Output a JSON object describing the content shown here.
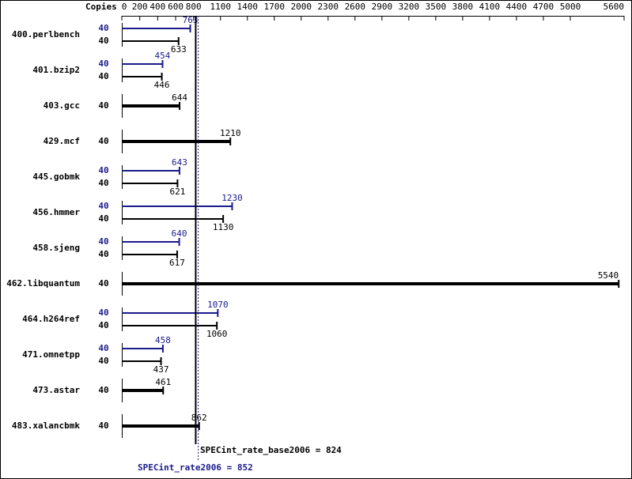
{
  "chart_data": {
    "type": "bar",
    "copies_label": "Copies",
    "categories": [
      "400.perlbench",
      "401.bzip2",
      "403.gcc",
      "429.mcf",
      "445.gobmk",
      "456.hmmer",
      "458.sjeng",
      "462.libquantum",
      "464.h264ref",
      "471.omnetpp",
      "473.astar",
      "483.xalancbmk"
    ],
    "series": [
      {
        "color": "#1a1a8c",
        "copies": [
          40,
          40,
          null,
          null,
          40,
          40,
          40,
          null,
          40,
          40,
          null,
          null
        ],
        "values": [
          763,
          454,
          null,
          null,
          643,
          1230,
          640,
          null,
          1070,
          458,
          null,
          null
        ]
      },
      {
        "color": "#000000",
        "copies": [
          40,
          40,
          40,
          40,
          40,
          40,
          40,
          40,
          40,
          40,
          40,
          40
        ],
        "values": [
          633,
          446,
          644,
          1210,
          621,
          1130,
          617,
          5540,
          1060,
          437,
          461,
          862
        ]
      }
    ],
    "summary": [
      {
        "text": "SPECint_rate_base2006 = 824",
        "value": 824,
        "color": "#000000"
      },
      {
        "text": "SPECint_rate2006 = 852",
        "value": 852,
        "color": "#1a1a8c"
      }
    ],
    "xlim": [
      0,
      5600
    ],
    "xticks": [
      0,
      200,
      400,
      600,
      800,
      1100,
      1400,
      1700,
      2000,
      2300,
      2600,
      2900,
      3200,
      3500,
      3800,
      4100,
      4400,
      4700,
      5000,
      5600
    ]
  }
}
